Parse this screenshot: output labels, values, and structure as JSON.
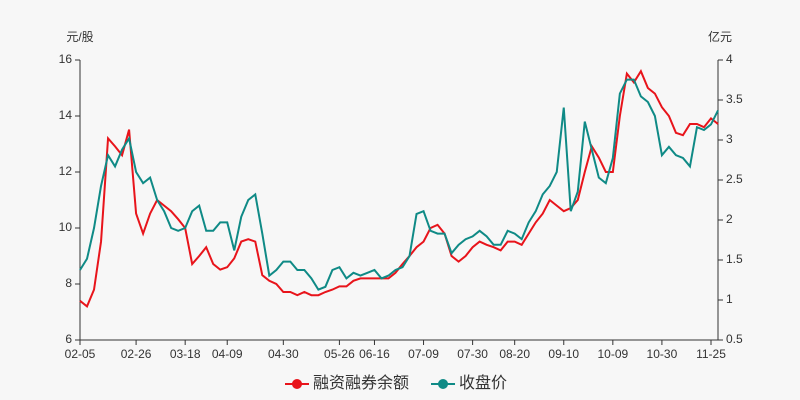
{
  "chart_data": {
    "type": "line",
    "y_label": "元/股",
    "y2_label": "亿元",
    "categories": [
      "02-05",
      null,
      null,
      null,
      null,
      null,
      null,
      null,
      "02-26",
      null,
      null,
      null,
      null,
      null,
      null,
      "03-18",
      null,
      null,
      null,
      null,
      null,
      "04-09",
      null,
      null,
      null,
      null,
      null,
      null,
      null,
      "04-30",
      null,
      null,
      null,
      null,
      null,
      null,
      null,
      "05-26",
      null,
      null,
      null,
      null,
      "06-16",
      null,
      null,
      null,
      null,
      null,
      null,
      "07-09",
      null,
      null,
      null,
      null,
      null,
      null,
      "07-30",
      null,
      null,
      null,
      null,
      null,
      "08-20",
      null,
      null,
      null,
      null,
      null,
      null,
      "09-10",
      null,
      null,
      null,
      null,
      null,
      null,
      "10-09",
      null,
      null,
      null,
      null,
      null,
      null,
      "10-30",
      null,
      null,
      null,
      null,
      null,
      null,
      "11-25",
      null
    ],
    "series": [
      {
        "name": "融资融券余额",
        "color": "#e8141b",
        "axis": "y2",
        "values": [
          0.99,
          0.92,
          1.13,
          1.73,
          3.02,
          2.92,
          2.81,
          3.13,
          2.08,
          1.83,
          2.08,
          2.25,
          2.18,
          2.11,
          2.01,
          1.9,
          1.45,
          1.55,
          1.66,
          1.45,
          1.38,
          1.41,
          1.52,
          1.73,
          1.76,
          1.73,
          1.31,
          1.24,
          1.2,
          1.1,
          1.1,
          1.06,
          1.1,
          1.06,
          1.06,
          1.1,
          1.13,
          1.17,
          1.17,
          1.24,
          1.27,
          1.27,
          1.27,
          1.27,
          1.27,
          1.34,
          1.45,
          1.55,
          1.66,
          1.73,
          1.9,
          1.94,
          1.83,
          1.55,
          1.48,
          1.55,
          1.66,
          1.73,
          1.69,
          1.66,
          1.62,
          1.73,
          1.73,
          1.69,
          1.83,
          1.97,
          2.08,
          2.25,
          2.18,
          2.11,
          2.15,
          2.25,
          2.6,
          2.92,
          2.78,
          2.6,
          2.6,
          3.3,
          3.83,
          3.72,
          3.86,
          3.65,
          3.58,
          3.41,
          3.3,
          3.09,
          3.06,
          3.2,
          3.2,
          3.16,
          3.27,
          3.2
        ]
      },
      {
        "name": "收盘价",
        "color": "#0f8a86",
        "values": [
          8.5,
          8.9,
          10.0,
          11.5,
          12.6,
          12.2,
          12.8,
          13.2,
          12.0,
          11.6,
          11.8,
          11.0,
          10.6,
          10.0,
          9.9,
          10.0,
          10.6,
          10.8,
          9.9,
          9.9,
          10.2,
          10.2,
          9.2,
          10.4,
          11.0,
          11.2,
          9.8,
          8.3,
          8.5,
          8.8,
          8.8,
          8.5,
          8.5,
          8.2,
          7.8,
          7.9,
          8.5,
          8.6,
          8.2,
          8.4,
          8.3,
          8.4,
          8.5,
          8.2,
          8.3,
          8.5,
          8.6,
          9.0,
          10.5,
          10.6,
          9.9,
          9.8,
          9.8,
          9.1,
          9.4,
          9.6,
          9.7,
          9.9,
          9.7,
          9.4,
          9.4,
          9.9,
          9.8,
          9.6,
          10.2,
          10.6,
          11.2,
          11.5,
          12.0,
          14.3,
          10.6,
          11.3,
          13.8,
          12.8,
          11.8,
          11.6,
          12.5,
          14.8,
          15.3,
          15.3,
          14.7,
          14.5,
          14.0,
          12.6,
          12.9,
          12.6,
          12.5,
          12.2,
          13.6,
          13.5,
          13.7,
          14.2
        ]
      }
    ],
    "ylim": [
      6,
      16
    ],
    "yticks": [
      6,
      8,
      10,
      12,
      14,
      16
    ],
    "y2lim": [
      0.5,
      4
    ],
    "y2ticks": [
      0.5,
      1,
      1.5,
      2,
      2.5,
      3,
      3.5,
      4
    ],
    "grid": false,
    "legend": "bottom"
  }
}
